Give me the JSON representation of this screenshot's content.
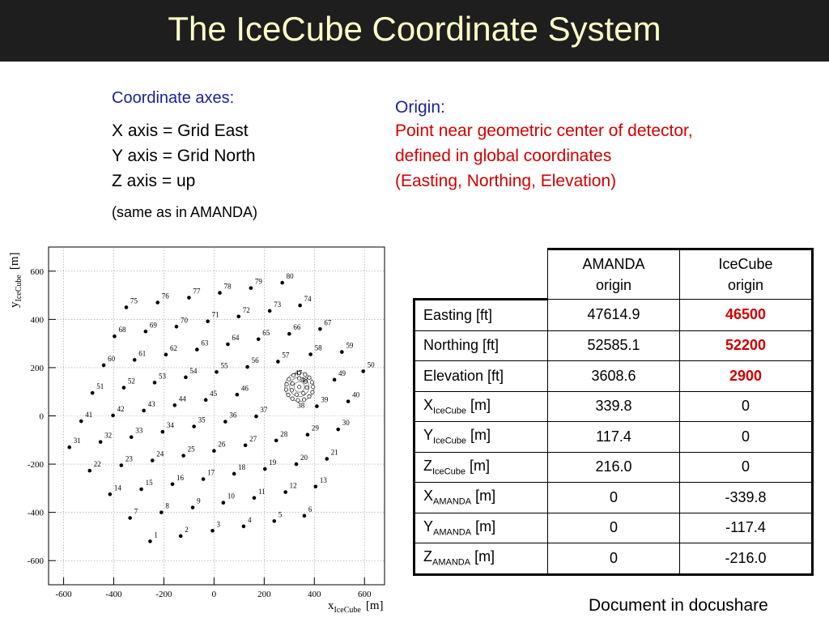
{
  "title": "The IceCube Coordinate System",
  "axes_heading": "Coordinate axes:",
  "axes_lines": [
    "X axis = Grid East",
    "Y axis = Grid North",
    "Z axis = up"
  ],
  "axes_note": "(same as in AMANDA)",
  "origin_heading": "Origin:",
  "origin_lines": [
    "Point near geometric center of detector,",
    "defined in global coordinates",
    "(Easting, Northing, Elevation)"
  ],
  "footer": "Document in docushare",
  "colors": {
    "title_bg": "#1e1e1e",
    "title_text": "#ffffc8",
    "heading_blue": "#1b1f9e",
    "emphasis_red": "#d10000"
  },
  "table": {
    "columns": [
      "AMANDA origin",
      "IceCube origin"
    ],
    "rows": [
      {
        "label": "Easting [ft]",
        "amanda": "47614.9",
        "icecube": "46500",
        "icecube_bold": true
      },
      {
        "label": "Northing [ft]",
        "amanda": "52585.1",
        "icecube": "52200",
        "icecube_bold": true
      },
      {
        "label": "Elevation [ft]",
        "amanda": "3608.6",
        "icecube": "2900",
        "icecube_bold": true
      },
      {
        "label_base": "X",
        "label_sub": "IceCube",
        "label_unit": " [m]",
        "amanda": "339.8",
        "icecube": "0"
      },
      {
        "label_base": "Y",
        "label_sub": "IceCube",
        "label_unit": " [m]",
        "amanda": "117.4",
        "icecube": "0"
      },
      {
        "label_base": "Z",
        "label_sub": "IceCube",
        "label_unit": " [m]",
        "amanda": "216.0",
        "icecube": "0"
      },
      {
        "label_base": "X",
        "label_sub": "AMANDA",
        "label_unit": " [m]",
        "amanda": "0",
        "icecube": "-339.8"
      },
      {
        "label_base": "Y",
        "label_sub": "AMANDA",
        "label_unit": " [m]",
        "amanda": "0",
        "icecube": "-117.4"
      },
      {
        "label_base": "Z",
        "label_sub": "AMANDA",
        "label_unit": " [m]",
        "amanda": "0",
        "icecube": "-216.0"
      }
    ]
  },
  "chart_data": {
    "type": "scatter",
    "xlabel": "x",
    "xlabel_sub": "IceCube",
    "xlabel_unit": "[m]",
    "ylabel": "y",
    "ylabel_sub": "IceCube",
    "ylabel_unit": "[m]",
    "xlim": [
      -660,
      680
    ],
    "ylim": [
      -700,
      700
    ],
    "xticks": [
      -600,
      -400,
      -200,
      0,
      200,
      400,
      600
    ],
    "yticks": [
      -600,
      -400,
      -200,
      0,
      200,
      400,
      600
    ],
    "grid": true,
    "strings": [
      {
        "n": "1",
        "x": -255,
        "y": -520
      },
      {
        "n": "2",
        "x": -133,
        "y": -498
      },
      {
        "n": "3",
        "x": -6,
        "y": -476
      },
      {
        "n": "4",
        "x": 118,
        "y": -458
      },
      {
        "n": "5",
        "x": 240,
        "y": -436
      },
      {
        "n": "6",
        "x": 360,
        "y": -414
      },
      {
        "n": "7",
        "x": -335,
        "y": -423
      },
      {
        "n": "8",
        "x": -210,
        "y": -400
      },
      {
        "n": "9",
        "x": -85,
        "y": -380
      },
      {
        "n": "10",
        "x": 37,
        "y": -360
      },
      {
        "n": "11",
        "x": 160,
        "y": -340
      },
      {
        "n": "12",
        "x": 285,
        "y": -316
      },
      {
        "n": "13",
        "x": 405,
        "y": -293
      },
      {
        "n": "14",
        "x": -415,
        "y": -325
      },
      {
        "n": "15",
        "x": -290,
        "y": -304
      },
      {
        "n": "16",
        "x": -166,
        "y": -283
      },
      {
        "n": "17",
        "x": -43,
        "y": -262
      },
      {
        "n": "18",
        "x": 80,
        "y": -240
      },
      {
        "n": "19",
        "x": 203,
        "y": -220
      },
      {
        "n": "20",
        "x": 328,
        "y": -200
      },
      {
        "n": "21",
        "x": 450,
        "y": -178
      },
      {
        "n": "22",
        "x": -496,
        "y": -227
      },
      {
        "n": "23",
        "x": -370,
        "y": -205
      },
      {
        "n": "24",
        "x": -246,
        "y": -185
      },
      {
        "n": "25",
        "x": -122,
        "y": -165
      },
      {
        "n": "26",
        "x": 0,
        "y": -145
      },
      {
        "n": "27",
        "x": 125,
        "y": -122
      },
      {
        "n": "28",
        "x": 248,
        "y": -102
      },
      {
        "n": "29",
        "x": 373,
        "y": -78
      },
      {
        "n": "30",
        "x": 495,
        "y": -56
      },
      {
        "n": "31",
        "x": -577,
        "y": -130
      },
      {
        "n": "32",
        "x": -453,
        "y": -108
      },
      {
        "n": "33",
        "x": -330,
        "y": -88
      },
      {
        "n": "34",
        "x": -205,
        "y": -66
      },
      {
        "n": "35",
        "x": -80,
        "y": -44
      },
      {
        "n": "36",
        "x": 45,
        "y": -24
      },
      {
        "n": "37",
        "x": 168,
        "y": -2
      },
      {
        "n": "39",
        "x": 410,
        "y": 40
      },
      {
        "n": "40",
        "x": 535,
        "y": 60
      },
      {
        "n": "41",
        "x": -530,
        "y": -22
      },
      {
        "n": "42",
        "x": -403,
        "y": 2
      },
      {
        "n": "43",
        "x": -280,
        "y": 22
      },
      {
        "n": "44",
        "x": -157,
        "y": 44
      },
      {
        "n": "45",
        "x": -33,
        "y": 66
      },
      {
        "n": "46",
        "x": 92,
        "y": 88
      },
      {
        "n": "49",
        "x": 480,
        "y": 150
      },
      {
        "n": "50",
        "x": 595,
        "y": 185
      },
      {
        "n": "51",
        "x": -485,
        "y": 95
      },
      {
        "n": "52",
        "x": -360,
        "y": 117
      },
      {
        "n": "53",
        "x": -237,
        "y": 138
      },
      {
        "n": "54",
        "x": -113,
        "y": 160
      },
      {
        "n": "55",
        "x": 10,
        "y": 182
      },
      {
        "n": "56",
        "x": 133,
        "y": 203
      },
      {
        "n": "57",
        "x": 255,
        "y": 225
      },
      {
        "n": "58",
        "x": 385,
        "y": 255
      },
      {
        "n": "59",
        "x": 510,
        "y": 265
      },
      {
        "n": "60",
        "x": -440,
        "y": 210
      },
      {
        "n": "61",
        "x": -317,
        "y": 232
      },
      {
        "n": "62",
        "x": -192,
        "y": 254
      },
      {
        "n": "63",
        "x": -68,
        "y": 275
      },
      {
        "n": "64",
        "x": 55,
        "y": 297
      },
      {
        "n": "65",
        "x": 177,
        "y": 318
      },
      {
        "n": "66",
        "x": 300,
        "y": 340
      },
      {
        "n": "67",
        "x": 423,
        "y": 360
      },
      {
        "n": "68",
        "x": -397,
        "y": 330
      },
      {
        "n": "69",
        "x": -273,
        "y": 350
      },
      {
        "n": "70",
        "x": -150,
        "y": 370
      },
      {
        "n": "71",
        "x": -25,
        "y": 392
      },
      {
        "n": "72",
        "x": 98,
        "y": 412
      },
      {
        "n": "73",
        "x": 222,
        "y": 435
      },
      {
        "n": "74",
        "x": 343,
        "y": 458
      },
      {
        "n": "75",
        "x": -350,
        "y": 450
      },
      {
        "n": "76",
        "x": -225,
        "y": 470
      },
      {
        "n": "77",
        "x": -100,
        "y": 490
      },
      {
        "n": "78",
        "x": 23,
        "y": 510
      },
      {
        "n": "79",
        "x": 147,
        "y": 530
      },
      {
        "n": "80",
        "x": 272,
        "y": 552
      }
    ],
    "center_labels": [
      {
        "n": "47",
        "x": 322,
        "y": 168
      },
      {
        "n": "48",
        "x": 345,
        "y": 140
      },
      {
        "n": "38",
        "x": 332,
        "y": 33
      }
    ],
    "amanda_rings": [
      {
        "cx": 340,
        "cy": 120,
        "r": 105
      },
      {
        "cx": 340,
        "cy": 120,
        "r": 70
      },
      {
        "cx": 340,
        "cy": 120,
        "r": 38
      }
    ],
    "amanda_modules": [
      {
        "x": 340,
        "y": 225
      },
      {
        "x": 382,
        "y": 214
      },
      {
        "x": 412,
        "y": 190
      },
      {
        "x": 432,
        "y": 155
      },
      {
        "x": 440,
        "y": 120
      },
      {
        "x": 435,
        "y": 80
      },
      {
        "x": 412,
        "y": 48
      },
      {
        "x": 375,
        "y": 25
      },
      {
        "x": 330,
        "y": 20
      },
      {
        "x": 290,
        "y": 32
      },
      {
        "x": 260,
        "y": 60
      },
      {
        "x": 245,
        "y": 100
      },
      {
        "x": 248,
        "y": 140
      },
      {
        "x": 265,
        "y": 178
      },
      {
        "x": 298,
        "y": 208
      },
      {
        "x": 340,
        "y": 185
      },
      {
        "x": 385,
        "y": 160
      },
      {
        "x": 395,
        "y": 115
      },
      {
        "x": 370,
        "y": 72
      },
      {
        "x": 320,
        "y": 62
      },
      {
        "x": 285,
        "y": 95
      },
      {
        "x": 290,
        "y": 145
      },
      {
        "x": 340,
        "y": 120
      }
    ]
  }
}
